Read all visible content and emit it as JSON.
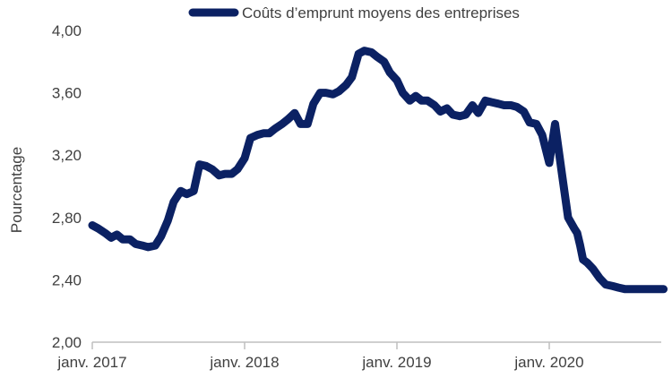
{
  "chart_data": {
    "type": "line",
    "title": "",
    "xlabel": "",
    "ylabel": "Pourcentage",
    "ylim": [
      2.0,
      4.0
    ],
    "yticks": [
      "2,00",
      "2,40",
      "2,80",
      "3,20",
      "3,60",
      "4,00"
    ],
    "xticks": [
      "janv. 2017",
      "janv. 2018",
      "janv. 2019",
      "janv. 2020"
    ],
    "xlim": [
      "2017-01",
      "2020-10"
    ],
    "legend": {
      "position": "top",
      "entries": [
        "Coûts d’emprunt moyens des entreprises"
      ]
    },
    "grid": false,
    "line_color": "#0b2163",
    "series": [
      {
        "name": "Coûts d’emprunt moyens des entreprises",
        "x": [
          "2017-01-01",
          "2017-01-15",
          "2017-02-01",
          "2017-02-15",
          "2017-03-01",
          "2017-03-15",
          "2017-04-01",
          "2017-04-15",
          "2017-05-01",
          "2017-05-15",
          "2017-06-01",
          "2017-06-15",
          "2017-07-01",
          "2017-07-15",
          "2017-08-01",
          "2017-08-15",
          "2017-09-01",
          "2017-09-15",
          "2017-10-01",
          "2017-10-15",
          "2017-11-01",
          "2017-11-15",
          "2017-12-01",
          "2017-12-15",
          "2018-01-01",
          "2018-01-15",
          "2018-02-01",
          "2018-02-15",
          "2018-03-01",
          "2018-03-15",
          "2018-04-01",
          "2018-04-15",
          "2018-05-01",
          "2018-05-15",
          "2018-06-01",
          "2018-06-15",
          "2018-07-01",
          "2018-07-15",
          "2018-08-01",
          "2018-08-15",
          "2018-09-01",
          "2018-09-15",
          "2018-10-01",
          "2018-10-15",
          "2018-11-01",
          "2018-11-15",
          "2018-12-01",
          "2018-12-15",
          "2019-01-01",
          "2019-01-15",
          "2019-02-01",
          "2019-02-15",
          "2019-03-01",
          "2019-03-15",
          "2019-04-01",
          "2019-04-15",
          "2019-05-01",
          "2019-05-15",
          "2019-06-01",
          "2019-06-15",
          "2019-07-01",
          "2019-07-15",
          "2019-08-01",
          "2019-08-15",
          "2019-09-01",
          "2019-09-15",
          "2019-10-01",
          "2019-10-15",
          "2019-11-01",
          "2019-11-15",
          "2019-12-01",
          "2019-12-15",
          "2020-01-01",
          "2020-01-15",
          "2020-02-01",
          "2020-02-15",
          "2020-03-01",
          "2020-03-08",
          "2020-03-15",
          "2020-03-22",
          "2020-04-01",
          "2020-04-15",
          "2020-05-01",
          "2020-05-15",
          "2020-06-01",
          "2020-06-15",
          "2020-07-01",
          "2020-07-15",
          "2020-08-01",
          "2020-08-15",
          "2020-09-01",
          "2020-09-15",
          "2020-10-01"
        ],
        "values": [
          2.75,
          2.73,
          2.7,
          2.67,
          2.69,
          2.66,
          2.66,
          2.63,
          2.62,
          2.61,
          2.62,
          2.68,
          2.78,
          2.9,
          2.97,
          2.95,
          2.97,
          3.14,
          3.13,
          3.11,
          3.07,
          3.08,
          3.08,
          3.11,
          3.18,
          3.31,
          3.33,
          3.34,
          3.34,
          3.37,
          3.4,
          3.43,
          3.47,
          3.4,
          3.4,
          3.53,
          3.6,
          3.6,
          3.59,
          3.61,
          3.65,
          3.7,
          3.85,
          3.87,
          3.86,
          3.83,
          3.8,
          3.73,
          3.68,
          3.6,
          3.55,
          3.58,
          3.55,
          3.55,
          3.52,
          3.48,
          3.5,
          3.46,
          3.45,
          3.46,
          3.52,
          3.47,
          3.55,
          3.54,
          3.53,
          3.52,
          3.52,
          3.51,
          3.48,
          3.41,
          3.4,
          3.33,
          3.15,
          3.4,
          3.07,
          2.8,
          2.73,
          2.7,
          2.62,
          2.53,
          2.51,
          2.47,
          2.41,
          2.37,
          2.36,
          2.35,
          2.34,
          2.34,
          2.34,
          2.34,
          2.34,
          2.34,
          2.34
        ]
      }
    ]
  }
}
